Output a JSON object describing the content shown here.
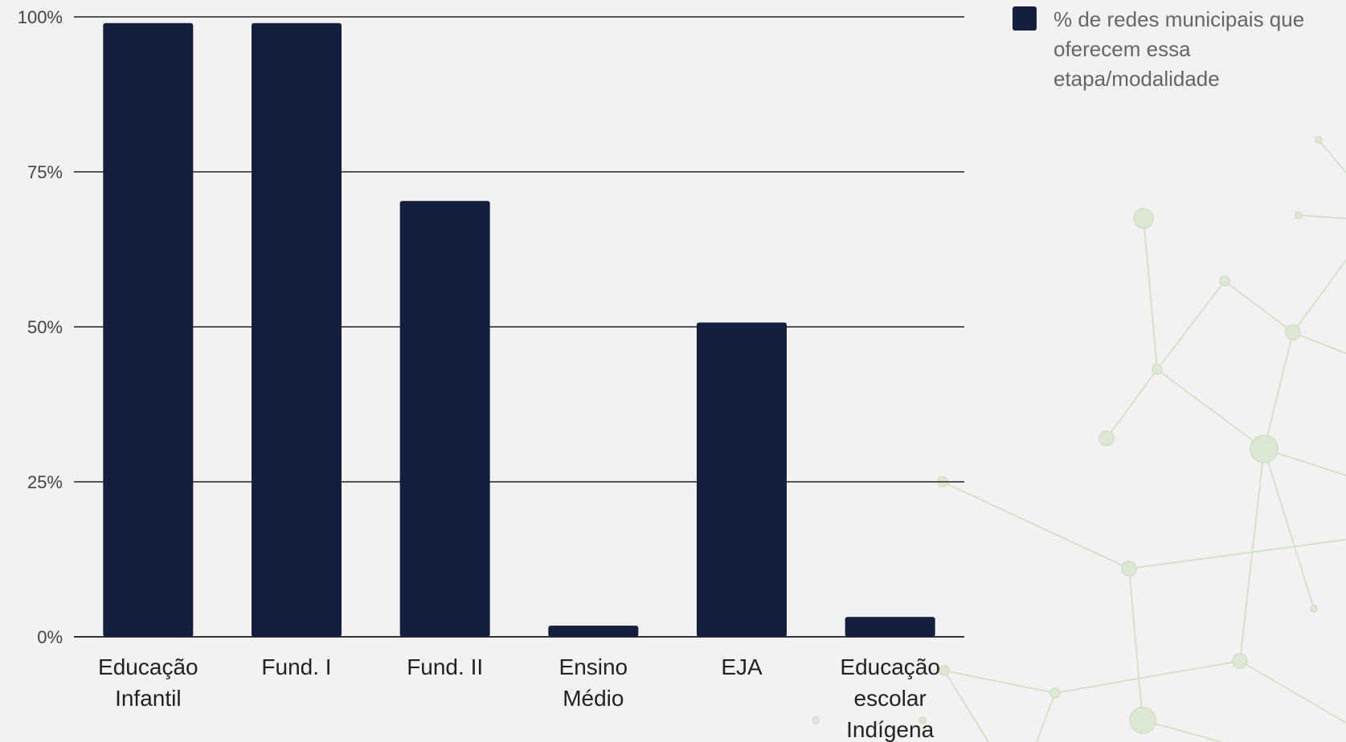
{
  "chart_data": {
    "type": "bar",
    "categories": [
      [
        "Educação",
        "Infantil"
      ],
      [
        "Fund. I"
      ],
      [
        "Fund. II"
      ],
      [
        "Ensino",
        "Médio"
      ],
      [
        "EJA"
      ],
      [
        "Educação",
        "escolar",
        "Indígena"
      ]
    ],
    "series": [
      {
        "name": "% de redes municipais que oferecem essa etapa/modalidade",
        "values": [
          99,
          99,
          70.3,
          1.8,
          50.7,
          3.2
        ],
        "color": "#141e3d"
      }
    ],
    "y_ticks": [
      "0%",
      "25%",
      "50%",
      "75%",
      "100%"
    ],
    "ylim": [
      0,
      100
    ],
    "grid": true,
    "legend_position": "top-right",
    "title": "",
    "xlabel": "",
    "ylabel": ""
  }
}
